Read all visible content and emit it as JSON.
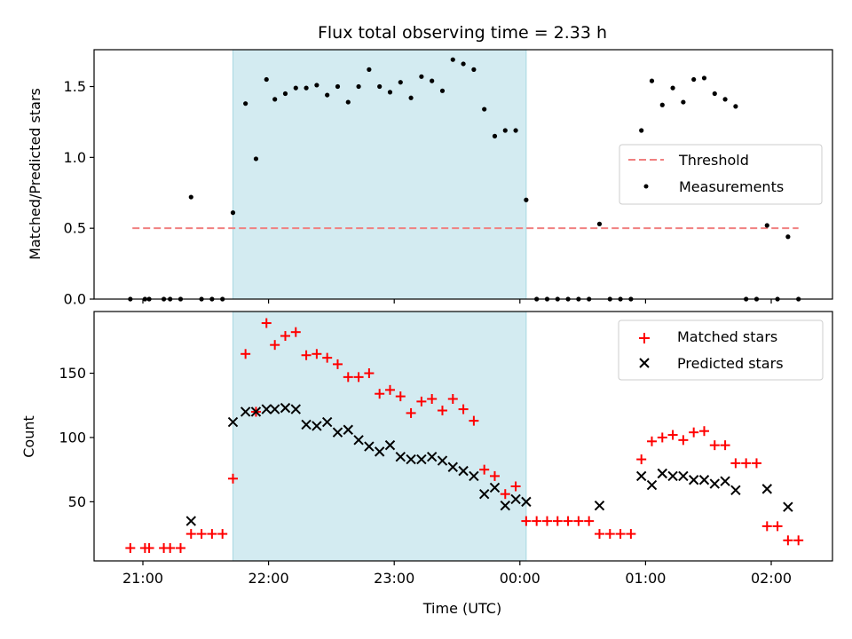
{
  "chart_data": [
    {
      "type": "scatter",
      "title": "Flux total observing time = 2.33 h",
      "xlabel": "",
      "ylabel": "Matched/Predicted stars",
      "ylim": [
        0,
        1.76
      ],
      "yticks": [
        "0.0",
        "0.5",
        "1.0",
        "1.5"
      ],
      "xticks": [
        "21:00",
        "22:00",
        "23:00",
        "00:00",
        "01:00",
        "02:00"
      ],
      "shaded_span": {
        "start": "21:43",
        "end": "00:03",
        "color": "#d3ebf1"
      },
      "threshold": {
        "name": "Threshold",
        "value": 0.5,
        "start": "20:55",
        "end": "02:13",
        "color": "#f08080",
        "style": "dashed"
      },
      "legend": {
        "position": "center-right",
        "entries": [
          "Threshold",
          "Measurements"
        ]
      },
      "series": [
        {
          "name": "Measurements",
          "color": "#000000",
          "marker": "dot",
          "points": [
            [
              "20:54",
              0
            ],
            [
              "21:01",
              0
            ],
            [
              "21:03",
              0
            ],
            [
              "21:10",
              0
            ],
            [
              "21:13",
              0
            ],
            [
              "21:18",
              0
            ],
            [
              "21:23",
              0.72
            ],
            [
              "21:28",
              0
            ],
            [
              "21:33",
              0
            ],
            [
              "21:38",
              0
            ],
            [
              "21:43",
              0.61
            ],
            [
              "21:49",
              1.38
            ],
            [
              "21:54",
              0.99
            ],
            [
              "21:59",
              1.55
            ],
            [
              "22:03",
              1.41
            ],
            [
              "22:08",
              1.45
            ],
            [
              "22:13",
              1.49
            ],
            [
              "22:18",
              1.49
            ],
            [
              "22:23",
              1.51
            ],
            [
              "22:28",
              1.44
            ],
            [
              "22:33",
              1.5
            ],
            [
              "22:38",
              1.39
            ],
            [
              "22:43",
              1.5
            ],
            [
              "22:48",
              1.62
            ],
            [
              "22:53",
              1.5
            ],
            [
              "22:58",
              1.46
            ],
            [
              "23:03",
              1.53
            ],
            [
              "23:08",
              1.42
            ],
            [
              "23:13",
              1.57
            ],
            [
              "23:18",
              1.54
            ],
            [
              "23:23",
              1.47
            ],
            [
              "23:28",
              1.69
            ],
            [
              "23:33",
              1.66
            ],
            [
              "23:38",
              1.62
            ],
            [
              "23:43",
              1.34
            ],
            [
              "23:48",
              1.15
            ],
            [
              "23:53",
              1.19
            ],
            [
              "23:58",
              1.19
            ],
            [
              "00:03",
              0.7
            ],
            [
              "00:08",
              0
            ],
            [
              "00:13",
              0
            ],
            [
              "00:18",
              0
            ],
            [
              "00:23",
              0
            ],
            [
              "00:28",
              0
            ],
            [
              "00:33",
              0
            ],
            [
              "00:38",
              0.53
            ],
            [
              "00:43",
              0
            ],
            [
              "00:48",
              0
            ],
            [
              "00:53",
              0
            ],
            [
              "00:58",
              1.19
            ],
            [
              "01:03",
              1.54
            ],
            [
              "01:08",
              1.37
            ],
            [
              "01:13",
              1.49
            ],
            [
              "01:18",
              1.39
            ],
            [
              "01:23",
              1.55
            ],
            [
              "01:28",
              1.56
            ],
            [
              "01:33",
              1.45
            ],
            [
              "01:38",
              1.41
            ],
            [
              "01:43",
              1.36
            ],
            [
              "01:48",
              0
            ],
            [
              "01:53",
              0
            ],
            [
              "01:58",
              0.52
            ],
            [
              "02:03",
              0
            ],
            [
              "02:08",
              0.44
            ],
            [
              "02:13",
              0
            ]
          ]
        }
      ]
    },
    {
      "type": "scatter",
      "title": "",
      "xlabel": "Time (UTC)",
      "ylabel": "Count",
      "ylim": [
        4,
        198
      ],
      "yticks": [
        "50",
        "100",
        "150"
      ],
      "xticks": [
        "21:00",
        "22:00",
        "23:00",
        "00:00",
        "01:00",
        "02:00"
      ],
      "shaded_span": {
        "start": "21:43",
        "end": "00:03",
        "color": "#d3ebf1"
      },
      "legend": {
        "position": "top-right",
        "entries": [
          "Matched stars",
          "Predicted stars"
        ]
      },
      "series": [
        {
          "name": "Matched stars",
          "color": "#ff0000",
          "marker": "plus",
          "points": [
            [
              "20:54",
              14
            ],
            [
              "21:01",
              14
            ],
            [
              "21:03",
              14
            ],
            [
              "21:10",
              14
            ],
            [
              "21:13",
              14
            ],
            [
              "21:18",
              14
            ],
            [
              "21:23",
              25
            ],
            [
              "21:28",
              25
            ],
            [
              "21:33",
              25
            ],
            [
              "21:38",
              25
            ],
            [
              "21:43",
              68
            ],
            [
              "21:49",
              165
            ],
            [
              "21:54",
              120
            ],
            [
              "21:59",
              189
            ],
            [
              "22:03",
              172
            ],
            [
              "22:08",
              179
            ],
            [
              "22:13",
              182
            ],
            [
              "22:18",
              164
            ],
            [
              "22:23",
              165
            ],
            [
              "22:28",
              162
            ],
            [
              "22:33",
              157
            ],
            [
              "22:38",
              147
            ],
            [
              "22:43",
              147
            ],
            [
              "22:48",
              150
            ],
            [
              "22:53",
              134
            ],
            [
              "22:58",
              137
            ],
            [
              "23:03",
              132
            ],
            [
              "23:08",
              119
            ],
            [
              "23:13",
              128
            ],
            [
              "23:18",
              130
            ],
            [
              "23:23",
              121
            ],
            [
              "23:28",
              130
            ],
            [
              "23:33",
              122
            ],
            [
              "23:38",
              113
            ],
            [
              "23:43",
              75
            ],
            [
              "23:48",
              70
            ],
            [
              "23:53",
              56
            ],
            [
              "23:58",
              62
            ],
            [
              "00:03",
              35
            ],
            [
              "00:08",
              35
            ],
            [
              "00:13",
              35
            ],
            [
              "00:18",
              35
            ],
            [
              "00:23",
              35
            ],
            [
              "00:28",
              35
            ],
            [
              "00:33",
              35
            ],
            [
              "00:38",
              25
            ],
            [
              "00:43",
              25
            ],
            [
              "00:48",
              25
            ],
            [
              "00:53",
              25
            ],
            [
              "00:58",
              83
            ],
            [
              "01:03",
              97
            ],
            [
              "01:08",
              100
            ],
            [
              "01:13",
              102
            ],
            [
              "01:18",
              98
            ],
            [
              "01:23",
              104
            ],
            [
              "01:28",
              105
            ],
            [
              "01:33",
              94
            ],
            [
              "01:38",
              94
            ],
            [
              "01:43",
              80
            ],
            [
              "01:48",
              80
            ],
            [
              "01:53",
              80
            ],
            [
              "01:58",
              31
            ],
            [
              "02:03",
              31
            ],
            [
              "02:08",
              20
            ],
            [
              "02:13",
              20
            ]
          ]
        },
        {
          "name": "Predicted stars",
          "color": "#000000",
          "marker": "x",
          "points": [
            [
              "21:23",
              35
            ],
            [
              "21:43",
              112
            ],
            [
              "21:49",
              120
            ],
            [
              "21:54",
              120
            ],
            [
              "21:59",
              122
            ],
            [
              "22:03",
              122
            ],
            [
              "22:08",
              123
            ],
            [
              "22:13",
              122
            ],
            [
              "22:18",
              110
            ],
            [
              "22:23",
              109
            ],
            [
              "22:28",
              112
            ],
            [
              "22:33",
              104
            ],
            [
              "22:38",
              106
            ],
            [
              "22:43",
              98
            ],
            [
              "22:48",
              93
            ],
            [
              "22:53",
              89
            ],
            [
              "22:58",
              94
            ],
            [
              "23:03",
              85
            ],
            [
              "23:08",
              83
            ],
            [
              "23:13",
              83
            ],
            [
              "23:18",
              85
            ],
            [
              "23:23",
              82
            ],
            [
              "23:28",
              77
            ],
            [
              "23:33",
              74
            ],
            [
              "23:38",
              70
            ],
            [
              "23:43",
              56
            ],
            [
              "23:48",
              61
            ],
            [
              "23:53",
              47
            ],
            [
              "23:58",
              52
            ],
            [
              "00:03",
              50
            ],
            [
              "00:38",
              47
            ],
            [
              "00:58",
              70
            ],
            [
              "01:03",
              63
            ],
            [
              "01:08",
              72
            ],
            [
              "01:13",
              70
            ],
            [
              "01:18",
              70
            ],
            [
              "01:23",
              67
            ],
            [
              "01:28",
              67
            ],
            [
              "01:33",
              64
            ],
            [
              "01:38",
              66
            ],
            [
              "01:43",
              59
            ],
            [
              "01:58",
              60
            ],
            [
              "02:08",
              46
            ]
          ]
        }
      ]
    }
  ]
}
